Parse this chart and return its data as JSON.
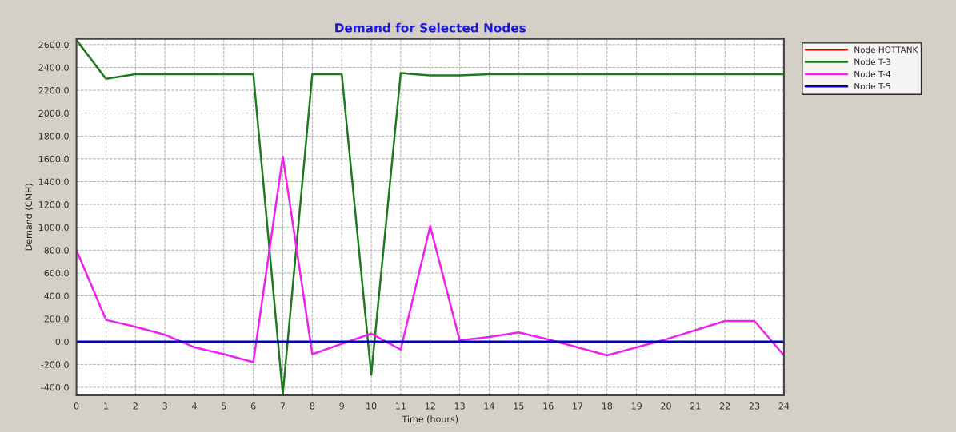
{
  "chart_data": {
    "type": "line",
    "title": "Demand for Selected Nodes",
    "xlabel": "Time (hours)",
    "ylabel": "Demand (CMH)",
    "x": [
      0,
      1,
      2,
      3,
      4,
      5,
      6,
      7,
      8,
      9,
      10,
      11,
      12,
      13,
      14,
      15,
      16,
      17,
      18,
      19,
      20,
      21,
      22,
      23,
      24
    ],
    "series": [
      {
        "name": "Node HOTTANK",
        "color": "#e00000",
        "values": [
          null,
          null,
          null,
          null,
          null,
          null,
          null,
          null,
          null,
          null,
          null,
          null,
          null,
          null,
          null,
          null,
          null,
          null,
          null,
          null,
          null,
          null,
          null,
          null,
          null
        ]
      },
      {
        "name": "Node T-3",
        "color": "#1e7a1e",
        "values": [
          2640,
          2300,
          2340,
          2340,
          2340,
          2340,
          2340,
          -460,
          2340,
          2340,
          -290,
          2350,
          2330,
          2330,
          2340,
          2340,
          2340,
          2340,
          2340,
          2340,
          2340,
          2340,
          2340,
          2340,
          2340
        ]
      },
      {
        "name": "Node T-4",
        "color": "#ee22ee",
        "values": [
          800,
          190,
          130,
          60,
          -50,
          -110,
          -180,
          1620,
          -110,
          -20,
          70,
          -70,
          1010,
          10,
          40,
          80,
          20,
          -50,
          -120,
          -50,
          20,
          100,
          180,
          180,
          -120
        ]
      },
      {
        "name": "Node T-5",
        "color": "#0000c0",
        "values": [
          0,
          0,
          0,
          0,
          0,
          0,
          0,
          0,
          0,
          0,
          0,
          0,
          0,
          0,
          0,
          0,
          0,
          0,
          0,
          0,
          0,
          0,
          0,
          0,
          0
        ]
      }
    ],
    "xlim": [
      0,
      24
    ],
    "xticks": [
      0,
      1,
      2,
      3,
      4,
      5,
      6,
      7,
      8,
      9,
      10,
      11,
      12,
      13,
      14,
      15,
      16,
      17,
      18,
      19,
      20,
      21,
      22,
      23,
      24
    ],
    "ylim": [
      -470,
      2650
    ],
    "yticks": [
      {
        "value": -400,
        "label": "-400.0"
      },
      {
        "value": -200,
        "label": "-200.0"
      },
      {
        "value": 0,
        "label": "0.0"
      },
      {
        "value": 200,
        "label": "200.0"
      },
      {
        "value": 400,
        "label": "400.0"
      },
      {
        "value": 600,
        "label": "600.0"
      },
      {
        "value": 800,
        "label": "800.0"
      },
      {
        "value": 1000,
        "label": "1000.0"
      },
      {
        "value": 1200,
        "label": "1200.0"
      },
      {
        "value": 1400,
        "label": "1400.0"
      },
      {
        "value": 1600,
        "label": "1600.0"
      },
      {
        "value": 1800,
        "label": "1800.0"
      },
      {
        "value": 2000,
        "label": "2000.0"
      },
      {
        "value": 2200,
        "label": "2200.0"
      },
      {
        "value": 2400,
        "label": "2400.0"
      },
      {
        "value": 2600,
        "label": "2600.0"
      }
    ],
    "grid": true,
    "legend": "top right",
    "line_style": "solid",
    "marker": "none"
  }
}
